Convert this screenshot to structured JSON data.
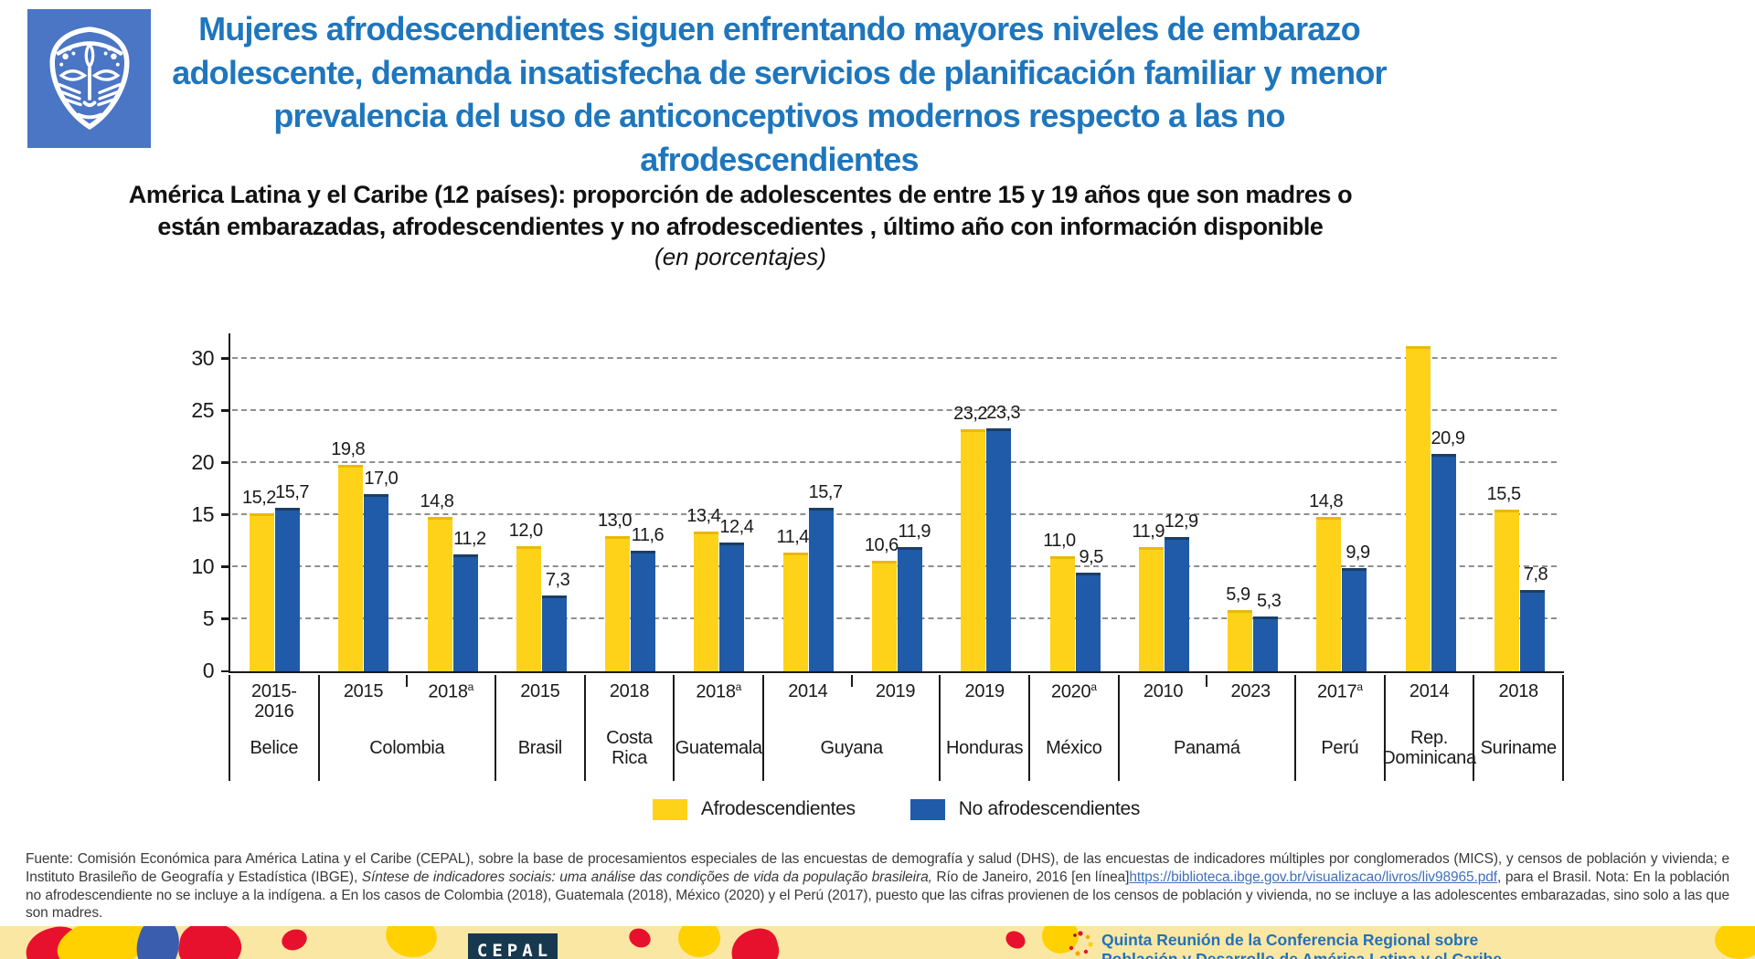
{
  "header": {
    "title_lines": [
      "Mujeres afrodescendientes siguen enfrentando mayores niveles de embarazo",
      "adolescente, demanda insatisfecha de servicios de planificación familiar y menor",
      "prevalencia del uso de anticonceptivos modernos respecto a las no afrodescendientes"
    ],
    "title_color": "#1E76BD",
    "logo": "african-mask-on-blue-square"
  },
  "chart_title": {
    "line1": "América Latina y el Caribe (12 países): proporción de adolescentes de entre 15 y 19 años que son madres o",
    "line2": "están embarazadas, afrodescendientes y no afrodescedientes , último año con información disponible",
    "subtitle": "(en porcentajes)"
  },
  "chart_data": {
    "type": "bar",
    "ylabel": "",
    "xlabel": "",
    "ylim": [
      0,
      32.6
    ],
    "yticks": [
      0,
      5,
      10,
      15,
      20,
      25,
      30
    ],
    "grid": "horizontal-dashed",
    "legend_position": "bottom",
    "series": [
      {
        "name": "Afrodescendientes",
        "color": "#FFD21A"
      },
      {
        "name": "No afrodescendientes",
        "color": "#1F5BA8"
      }
    ],
    "groups": [
      {
        "country": "Belice",
        "bars": [
          {
            "year_lines": [
              "2015-",
              "2016"
            ],
            "sup": "",
            "afro": 15.2,
            "noafro": 15.7,
            "afro_label": "15,2",
            "noafro_label": "15,7"
          }
        ]
      },
      {
        "country": "Colombia",
        "bars": [
          {
            "year_lines": [
              "2015"
            ],
            "sup": "",
            "afro": 19.8,
            "noafro": 17.0,
            "afro_label": "19,8",
            "noafro_label": "17,0"
          },
          {
            "year_lines": [
              "2018"
            ],
            "sup": "a",
            "afro": 14.8,
            "noafro": 11.2,
            "afro_label": "14,8",
            "noafro_label": "11,2"
          }
        ]
      },
      {
        "country": "Brasil",
        "bars": [
          {
            "year_lines": [
              "2015"
            ],
            "sup": "",
            "afro": 12.0,
            "noafro": 7.3,
            "afro_label": "12,0",
            "noafro_label": "7,3"
          }
        ]
      },
      {
        "country": "Costa Rica",
        "bars": [
          {
            "year_lines": [
              "2018"
            ],
            "sup": "",
            "afro": 13.0,
            "noafro": 11.6,
            "afro_label": "13,0",
            "noafro_label": "11,6"
          }
        ]
      },
      {
        "country": "Guatemala",
        "bars": [
          {
            "year_lines": [
              "2018"
            ],
            "sup": "a",
            "afro": 13.4,
            "noafro": 12.4,
            "afro_label": "13,4",
            "noafro_label": "12,4"
          }
        ]
      },
      {
        "country": "Guyana",
        "bars": [
          {
            "year_lines": [
              "2014"
            ],
            "sup": "",
            "afro": 11.4,
            "noafro": 15.7,
            "afro_label": "11,4",
            "noafro_label": "15,7"
          },
          {
            "year_lines": [
              "2019"
            ],
            "sup": "",
            "afro": 10.6,
            "noafro": 11.9,
            "afro_label": "10,6",
            "noafro_label": "11,9"
          }
        ]
      },
      {
        "country": "Honduras",
        "bars": [
          {
            "year_lines": [
              "2019"
            ],
            "sup": "",
            "afro": 23.2,
            "noafro": 23.3,
            "afro_label": "23,2",
            "noafro_label": "23,3"
          }
        ]
      },
      {
        "country": "México",
        "bars": [
          {
            "year_lines": [
              "2020"
            ],
            "sup": "a",
            "afro": 11.0,
            "noafro": 9.5,
            "afro_label": "11,0",
            "noafro_label": "9,5"
          }
        ]
      },
      {
        "country": "Panamá",
        "bars": [
          {
            "year_lines": [
              "2010"
            ],
            "sup": "",
            "afro": 11.9,
            "noafro": 12.9,
            "afro_label": "11,9",
            "noafro_label": "12,9"
          },
          {
            "year_lines": [
              "2023"
            ],
            "sup": "",
            "afro": 5.9,
            "noafro": 5.3,
            "afro_label": "5,9",
            "noafro_label": "5,3"
          }
        ]
      },
      {
        "country": "Perú",
        "bars": [
          {
            "year_lines": [
              "2017"
            ],
            "sup": "a",
            "afro": 14.8,
            "noafro": 9.9,
            "afro_label": "14,8",
            "noafro_label": "9,9"
          }
        ]
      },
      {
        "country": "Rep. Dominicana",
        "bars": [
          {
            "year_lines": [
              "2014"
            ],
            "sup": "",
            "afro": 31.2,
            "noafro": 20.9,
            "afro_label": "",
            "noafro_label": "20,9"
          }
        ]
      },
      {
        "country": "Suriname",
        "bars": [
          {
            "year_lines": [
              "2018"
            ],
            "sup": "",
            "afro": 15.5,
            "noafro": 7.8,
            "afro_label": "15,5",
            "noafro_label": "7,8"
          }
        ]
      }
    ]
  },
  "legend": {
    "items": [
      {
        "label": "Afrodescendientes",
        "color": "#FFD21A"
      },
      {
        "label": "No afrodescendientes",
        "color": "#1F5BA8"
      }
    ]
  },
  "footer": {
    "segments": [
      {
        "style": "normal",
        "text": "Fuente: Comisión Económica para América Latina y el Caribe (CEPAL), sobre la base de procesamientos especiales de las encuestas de demografía y salud (DHS), de las encuestas de indicadores múltiples por conglomerados (MICS), y censos de población y vivienda; e Instituto Brasileño de Geografía y Estadística (IBGE), "
      },
      {
        "style": "italic",
        "text": "Síntese de indicadores sociais: uma análise das condições de vida da população brasileira,"
      },
      {
        "style": "normal",
        "text": " Río de Janeiro, 2016 [en línea]"
      },
      {
        "style": "link",
        "text": "https://biblioteca.ibge.gov.br/visualizacao/livros/liv98965.pdf"
      },
      {
        "style": "normal",
        "text": ", para el Brasil. Nota: En la población no afrodescendiente no se incluye a la indígena. a En los casos de Colombia (2018), Guatemala (2018), México (2020) y el Perú (2017), puesto que las cifras provienen de los censos de población y vivienda, no se incluye a las adolescentes embarazadas, sino solo a las que son madres."
      }
    ]
  },
  "banner": {
    "cepal_logo_text": "CEPAL",
    "conference_line1": "Quinta Reunión de la Conferencia Regional sobre",
    "conference_line2": "Población y Desarrollo de América Latina y el Caribe",
    "background": "#FBE7A4"
  }
}
